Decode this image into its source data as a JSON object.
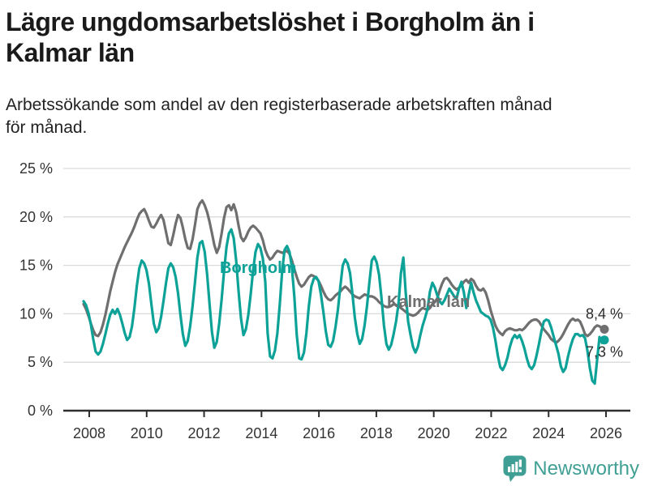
{
  "header": {
    "title_lines": [
      "Lägre ungdomsarbetslöshet i Borgholm än i",
      "Kalmar län"
    ],
    "subtitle_lines": [
      "Arbetssökande som andel av den registerbaserade arbetskraften månad",
      "för månad."
    ]
  },
  "footer": {
    "brand": "Newsworthy",
    "logo_color": "#3f9f94",
    "logo_icon": "bar-chart-speech-bubble"
  },
  "colors": {
    "borgholm": "#0da298",
    "kalmar": "#6f6f6f",
    "grid": "#dadada",
    "axis": "#333333",
    "annotation": "#2b2b2b"
  },
  "chart_data": {
    "type": "line",
    "unit": "%",
    "frequency": "monthly",
    "start_month": "2008-01",
    "end_month": "2025-12",
    "grid": true,
    "y_axis": {
      "ylim": [
        0,
        25
      ],
      "ticks": [
        0,
        5,
        10,
        15,
        20,
        25
      ],
      "tick_labels": [
        "0 %",
        "5 %",
        "10 %",
        "15 %",
        "20 %",
        "25 %"
      ]
    },
    "x_axis": {
      "ticks": [
        2008,
        2010,
        2012,
        2014,
        2016,
        2018,
        2020,
        2022,
        2024,
        2026
      ],
      "tick_labels": [
        "2008",
        "2010",
        "2012",
        "2014",
        "2016",
        "2018",
        "2020",
        "2022",
        "2024",
        "2026"
      ]
    },
    "series": [
      {
        "name": "Borgholm",
        "color": "#0da298",
        "latest_label": "7,3 %",
        "latest_value": 7.3,
        "values": [
          11.3,
          10.9,
          10.1,
          8.9,
          7.4,
          6.1,
          5.8,
          6.1,
          6.9,
          7.9,
          9.0,
          9.9,
          10.4,
          10.0,
          10.5,
          9.9,
          9.0,
          8.0,
          7.3,
          7.6,
          8.7,
          10.6,
          12.9,
          14.7,
          15.5,
          15.2,
          14.5,
          13.1,
          11.0,
          9.0,
          8.1,
          8.5,
          9.7,
          11.3,
          13.1,
          14.7,
          15.2,
          14.8,
          13.8,
          12.1,
          9.9,
          7.9,
          6.7,
          7.2,
          8.7,
          10.8,
          13.3,
          15.8,
          17.3,
          17.5,
          16.4,
          14.1,
          11.0,
          8.1,
          6.5,
          7.1,
          9.0,
          11.5,
          14.4,
          16.9,
          18.3,
          18.7,
          17.8,
          15.5,
          12.3,
          9.5,
          7.8,
          8.4,
          9.9,
          12.0,
          14.5,
          16.4,
          17.2,
          16.8,
          15.7,
          13.3,
          8.0,
          5.6,
          5.4,
          6.2,
          8.0,
          11.0,
          14.5,
          16.6,
          17.0,
          16.4,
          14.8,
          11.8,
          7.8,
          5.4,
          5.3,
          6.0,
          8.0,
          10.8,
          12.8,
          13.6,
          13.8,
          13.4,
          12.0,
          10.2,
          8.2,
          6.8,
          6.6,
          7.2,
          8.6,
          10.4,
          12.8,
          15.0,
          15.6,
          15.2,
          14.2,
          12.0,
          9.6,
          7.9,
          6.9,
          7.4,
          8.8,
          10.8,
          13.3,
          15.5,
          15.9,
          15.3,
          14.0,
          11.6,
          8.8,
          6.9,
          6.3,
          6.8,
          7.9,
          9.2,
          11.0,
          14.2,
          15.8,
          12.2,
          9.2,
          7.8,
          6.6,
          6.0,
          6.6,
          7.8,
          8.8,
          9.6,
          10.5,
          12.3,
          13.2,
          12.7,
          11.9,
          11.3,
          11.0,
          11.4,
          12.0,
          12.6,
          12.2,
          11.8,
          11.6,
          12.6,
          13.3,
          12.2,
          10.6,
          12.0,
          13.2,
          12.2,
          11.4,
          10.8,
          10.2,
          10.0,
          9.8,
          9.7,
          9.4,
          8.6,
          7.3,
          5.7,
          4.5,
          4.2,
          4.7,
          5.5,
          6.6,
          7.4,
          7.8,
          7.5,
          7.8,
          7.2,
          6.4,
          5.4,
          4.6,
          4.3,
          4.7,
          5.7,
          6.9,
          8.2,
          9.2,
          9.4,
          9.3,
          8.6,
          7.7,
          6.8,
          5.9,
          4.6,
          4.0,
          4.4,
          5.6,
          6.6,
          7.4,
          7.9,
          7.9,
          7.7,
          7.8,
          7.5,
          6.2,
          4.4,
          3.1,
          2.8,
          5.2,
          7.6,
          7.0,
          7.3
        ]
      },
      {
        "name": "Kalmar län",
        "color": "#6f6f6f",
        "latest_label": "8,4 %",
        "latest_value": 8.4,
        "values": [
          11.0,
          10.5,
          9.8,
          9.0,
          8.3,
          7.8,
          7.7,
          8.1,
          8.9,
          9.9,
          11.1,
          12.3,
          13.3,
          14.3,
          15.1,
          15.7,
          16.3,
          16.9,
          17.4,
          17.9,
          18.4,
          19.0,
          19.7,
          20.3,
          20.6,
          20.8,
          20.3,
          19.6,
          19.0,
          18.9,
          19.3,
          19.8,
          20.2,
          19.7,
          18.5,
          17.3,
          17.1,
          18.1,
          19.3,
          20.2,
          19.9,
          18.9,
          17.7,
          16.8,
          16.7,
          17.7,
          19.2,
          20.8,
          21.4,
          21.7,
          21.2,
          20.5,
          19.5,
          18.3,
          17.1,
          16.3,
          16.9,
          18.3,
          19.9,
          21.0,
          21.2,
          20.7,
          21.3,
          20.5,
          19.1,
          17.9,
          17.5,
          17.9,
          18.5,
          18.9,
          19.1,
          18.9,
          18.6,
          18.3,
          17.6,
          16.6,
          16.0,
          15.6,
          15.8,
          16.2,
          16.5,
          16.4,
          16.3,
          16.4,
          16.5,
          16.2,
          15.5,
          14.6,
          13.8,
          13.1,
          12.8,
          13.0,
          13.4,
          13.8,
          14.0,
          13.9,
          13.7,
          13.4,
          12.9,
          12.3,
          11.8,
          11.5,
          11.4,
          11.6,
          11.9,
          12.1,
          12.3,
          12.6,
          12.8,
          12.6,
          12.3,
          12.0,
          11.8,
          11.7,
          11.6,
          11.8,
          12.0,
          11.9,
          11.8,
          11.8,
          11.7,
          11.5,
          11.2,
          11.0,
          10.8,
          10.7,
          10.7,
          10.8,
          11.0,
          10.9,
          10.8,
          10.6,
          10.4,
          10.2,
          10.0,
          9.9,
          9.8,
          9.9,
          10.1,
          10.4,
          10.6,
          10.5,
          10.4,
          10.6,
          11.0,
          11.2,
          11.6,
          12.4,
          13.1,
          13.6,
          13.7,
          13.4,
          13.0,
          12.7,
          12.5,
          12.7,
          12.9,
          13.3,
          13.5,
          13.2,
          13.6,
          13.4,
          12.9,
          12.5,
          12.4,
          12.6,
          12.2,
          11.4,
          10.4,
          9.6,
          8.8,
          8.3,
          8.0,
          7.8,
          8.2,
          8.4,
          8.5,
          8.4,
          8.3,
          8.3,
          8.4,
          8.3,
          8.5,
          8.8,
          9.1,
          9.3,
          9.4,
          9.4,
          9.2,
          8.8,
          8.4,
          8.1,
          7.8,
          7.4,
          7.2,
          7.0,
          7.2,
          7.5,
          7.9,
          8.4,
          8.9,
          9.3,
          9.5,
          9.3,
          9.4,
          9.2,
          8.6,
          7.9,
          7.7,
          7.9,
          8.2,
          8.6,
          8.8,
          8.7,
          8.5,
          8.4
        ]
      }
    ]
  }
}
